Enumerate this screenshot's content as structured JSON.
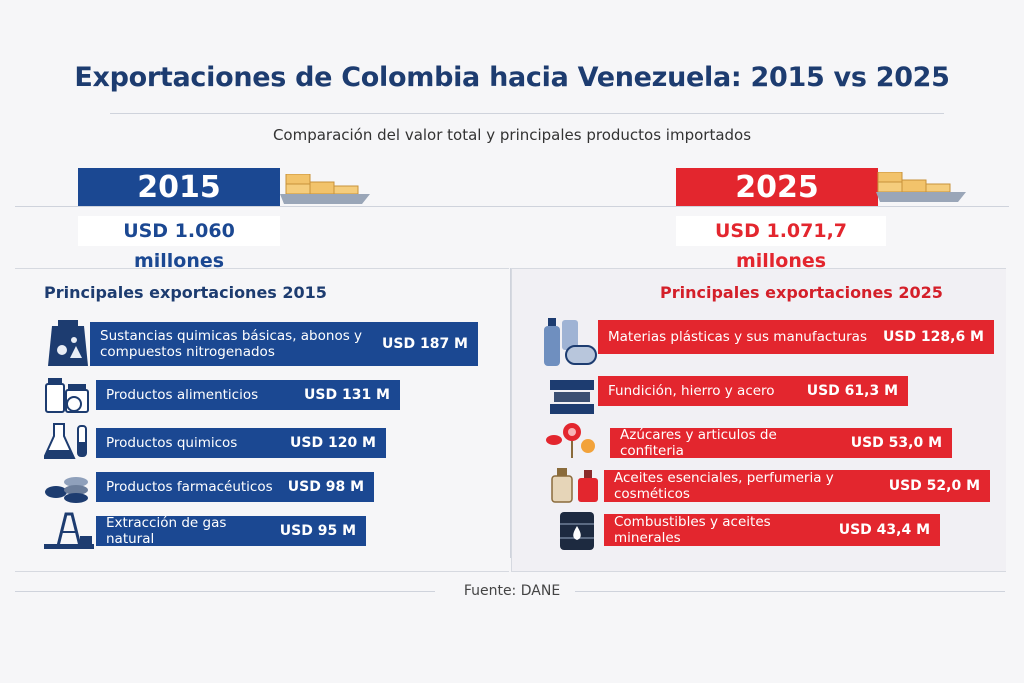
{
  "title": "Exportaciones de Colombia hacia Venezuela: 2015 vs 2025",
  "subtitle": "Comparación del valor total y principales productos importados",
  "left": {
    "year": "2015",
    "total": "USD 1.060 millones",
    "section_title": "Principales exportaciones 2015",
    "items": [
      {
        "label": "Sustancias quimicas básicas, abonos y compuestos nitrogenados",
        "value": "USD 187 M",
        "icon": "chemical-sack-icon"
      },
      {
        "label": "Productos alimenticios",
        "value": "USD 131 M",
        "icon": "food-jars-icon"
      },
      {
        "label": "Productos quimicos",
        "value": "USD 120 M",
        "icon": "flask-icon"
      },
      {
        "label": "Productos farmacéuticos",
        "value": "USD 98 M",
        "icon": "pills-icon"
      },
      {
        "label": "Extracción de gas natural",
        "value": "USD 95 M",
        "icon": "gas-rig-icon"
      }
    ]
  },
  "right": {
    "year": "2025",
    "total": "USD 1.071,7 millones",
    "section_title": "Principales exportaciones 2025",
    "items": [
      {
        "label": "Materias plásticas y sus manufacturas",
        "value": "USD 128,6 M",
        "icon": "plastic-bottles-icon"
      },
      {
        "label": "Fundición, hierro y acero",
        "value": "USD 61,3 M",
        "icon": "steel-beams-icon"
      },
      {
        "label": "Azúcares y articulos de confiteria",
        "value": "USD 53,0 M",
        "icon": "candy-icon"
      },
      {
        "label": "Aceites esenciales, perfumeria y cosméticos",
        "value": "USD 52,0 M",
        "icon": "perfume-icon"
      },
      {
        "label": "Combustibles y aceites minerales",
        "value": "USD 43,4 M",
        "icon": "oil-barrel-icon"
      }
    ]
  },
  "source": "Fuente: DANE",
  "colors": {
    "blue": "#1b4892",
    "red": "#e3262e",
    "navy": "#1d3c70"
  }
}
